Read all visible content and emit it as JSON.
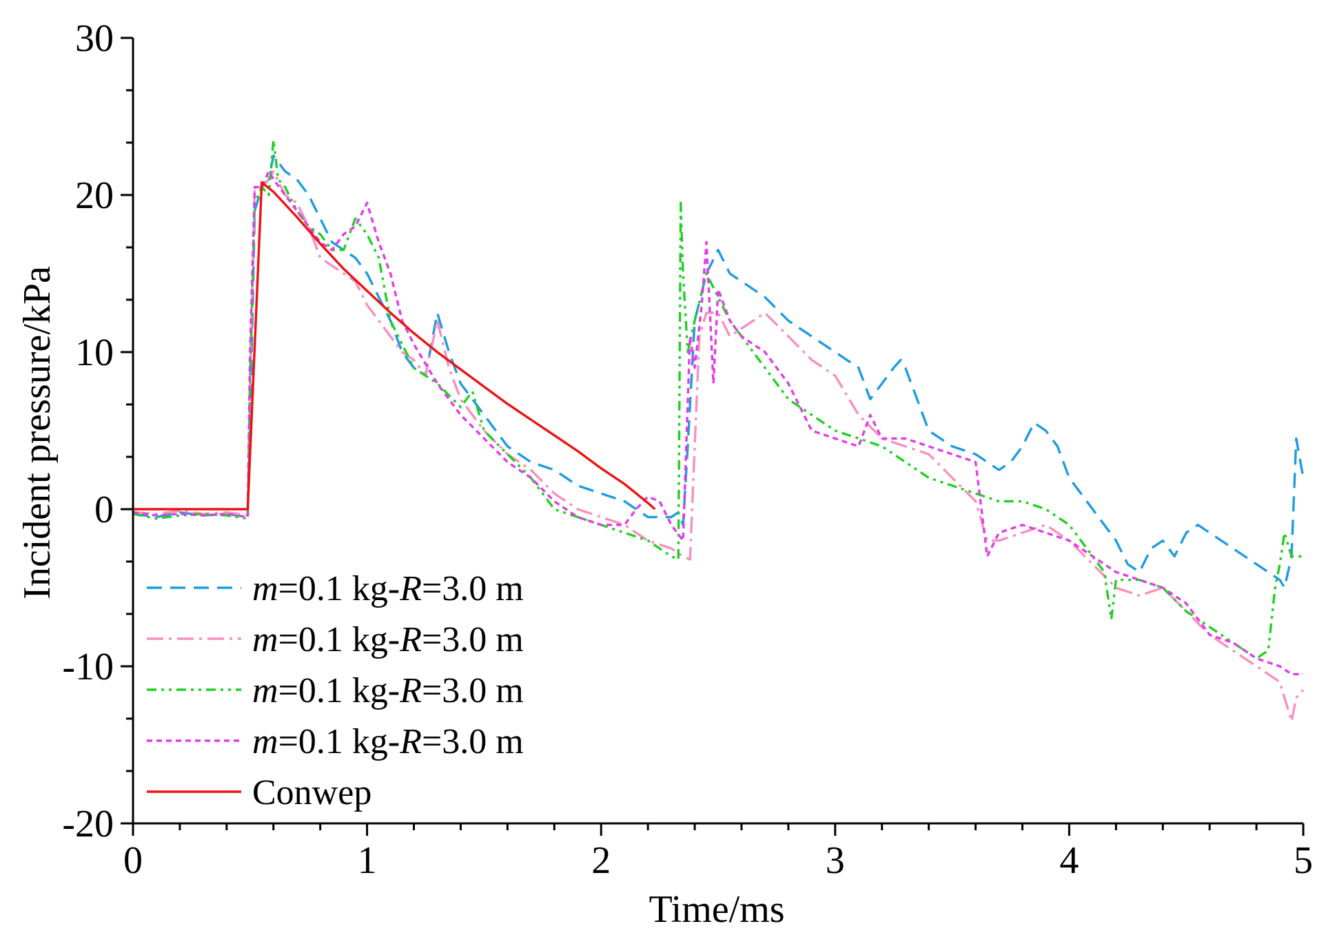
{
  "chart_data": {
    "type": "line",
    "title": "",
    "xlabel": "Time/ms",
    "ylabel": "Incident pressure/kPa",
    "xlim": [
      0,
      5
    ],
    "ylim": [
      -20,
      30
    ],
    "xticks": [
      0,
      1,
      2,
      3,
      4,
      5
    ],
    "yticks": [
      -20,
      -10,
      0,
      10,
      20,
      30
    ],
    "grid": false,
    "legend_position": "bottom-left",
    "series": [
      {
        "name": "m=0.1 kg-R=3.0 m",
        "label_parts": [
          "m",
          "=0.1 kg-",
          "R",
          "=3.0 m"
        ],
        "color": "#1E9BE0",
        "dash": "22 12",
        "x": [
          0,
          0.1,
          0.2,
          0.3,
          0.4,
          0.49,
          0.5,
          0.52,
          0.55,
          0.58,
          0.6,
          0.65,
          0.7,
          0.75,
          0.8,
          0.85,
          0.9,
          0.95,
          1.0,
          1.05,
          1.1,
          1.15,
          1.2,
          1.25,
          1.3,
          1.35,
          1.4,
          1.5,
          1.6,
          1.7,
          1.8,
          1.9,
          2.0,
          2.1,
          2.2,
          2.3,
          2.33,
          2.35,
          2.37,
          2.4,
          2.45,
          2.5,
          2.55,
          2.6,
          2.7,
          2.8,
          2.9,
          3.0,
          3.1,
          3.15,
          3.2,
          3.25,
          3.28,
          3.3,
          3.35,
          3.4,
          3.5,
          3.6,
          3.7,
          3.75,
          3.8,
          3.85,
          3.9,
          3.95,
          4.0,
          4.05,
          4.1,
          4.15,
          4.2,
          4.25,
          4.3,
          4.35,
          4.4,
          4.45,
          4.5,
          4.55,
          4.6,
          4.65,
          4.7,
          4.75,
          4.8,
          4.85,
          4.9,
          4.92,
          4.95,
          4.97,
          5.0
        ],
        "y": [
          -0.3,
          -0.5,
          -0.2,
          -0.4,
          -0.3,
          -0.5,
          5,
          19,
          20.5,
          21,
          22.5,
          21.5,
          21,
          20,
          18.5,
          17,
          16.5,
          16,
          15,
          13.5,
          12,
          10,
          9,
          8.5,
          12.5,
          10,
          8,
          6,
          4,
          3,
          2.5,
          1.5,
          1,
          0.5,
          -0.5,
          -0.5,
          -0.2,
          -1,
          4,
          12,
          15,
          16.5,
          15,
          14.5,
          13.5,
          12,
          11,
          10,
          9,
          7,
          8,
          9,
          9.5,
          9,
          7,
          5,
          4,
          3.5,
          2.5,
          3,
          4,
          5.5,
          5,
          4,
          2,
          1,
          0,
          -1,
          -2,
          -3.5,
          -4,
          -2.5,
          -2,
          -3,
          -1.5,
          -1,
          -1.5,
          -2,
          -2.5,
          -3,
          -3.5,
          -4,
          -4.5,
          -5,
          -3,
          4.5,
          2
        ]
      },
      {
        "name": "m=0.1 kg-R=3.0 m",
        "label_parts": [
          "m",
          "=0.1 kg-",
          "R",
          "=3.0 m"
        ],
        "color": "#F78FBF",
        "dash": "24 8 4 8",
        "x": [
          0,
          0.1,
          0.2,
          0.3,
          0.4,
          0.49,
          0.5,
          0.52,
          0.55,
          0.58,
          0.6,
          0.65,
          0.7,
          0.75,
          0.8,
          0.85,
          0.9,
          0.95,
          1.0,
          1.05,
          1.1,
          1.15,
          1.2,
          1.25,
          1.3,
          1.35,
          1.4,
          1.5,
          1.6,
          1.7,
          1.8,
          1.9,
          2.0,
          2.1,
          2.2,
          2.3,
          2.35,
          2.38,
          2.4,
          2.42,
          2.45,
          2.5,
          2.55,
          2.6,
          2.7,
          2.8,
          2.9,
          3.0,
          3.1,
          3.2,
          3.3,
          3.4,
          3.5,
          3.6,
          3.65,
          3.7,
          3.8,
          3.9,
          4.0,
          4.1,
          4.2,
          4.3,
          4.4,
          4.5,
          4.6,
          4.7,
          4.8,
          4.85,
          4.9,
          4.95,
          4.97,
          5.0
        ],
        "y": [
          -0.2,
          -0.3,
          -0.1,
          -0.3,
          -0.2,
          -0.4,
          8,
          20.5,
          20.5,
          21,
          21.5,
          20,
          19.5,
          18,
          16,
          15.5,
          15,
          14.5,
          13,
          12,
          11,
          10,
          9.5,
          8.5,
          12,
          9,
          7,
          5,
          3.5,
          2.5,
          1,
          0,
          -0.5,
          -1,
          -2,
          -2.5,
          -3,
          -3.2,
          4,
          11,
          12.5,
          12.5,
          11,
          11.5,
          12.5,
          11,
          9.5,
          8.5,
          6,
          4.5,
          4,
          3.5,
          2,
          0.5,
          -2,
          -2,
          -1.5,
          -1,
          -2,
          -3.5,
          -5,
          -5.5,
          -5,
          -6.5,
          -8,
          -9,
          -10,
          -10.5,
          -11,
          -13.5,
          -12,
          -11.5
        ]
      },
      {
        "name": "m=0.1 kg-R=3.0 m",
        "label_parts": [
          "m",
          "=0.1 kg-",
          "R",
          "=3.0 m"
        ],
        "color": "#1FD023",
        "dash": "14 7 4 7 4 7",
        "x": [
          0,
          0.1,
          0.2,
          0.3,
          0.4,
          0.49,
          0.5,
          0.52,
          0.55,
          0.58,
          0.6,
          0.62,
          0.65,
          0.7,
          0.75,
          0.8,
          0.85,
          0.9,
          0.95,
          1.0,
          1.05,
          1.1,
          1.15,
          1.2,
          1.3,
          1.4,
          1.45,
          1.5,
          1.6,
          1.7,
          1.8,
          1.9,
          2.0,
          2.1,
          2.2,
          2.3,
          2.33,
          2.34,
          2.35,
          2.37,
          2.4,
          2.45,
          2.5,
          2.55,
          2.6,
          2.7,
          2.8,
          2.9,
          3.0,
          3.1,
          3.2,
          3.3,
          3.4,
          3.5,
          3.6,
          3.7,
          3.8,
          3.9,
          4.0,
          4.1,
          4.15,
          4.18,
          4.2,
          4.3,
          4.4,
          4.5,
          4.6,
          4.7,
          4.8,
          4.85,
          4.88,
          4.9,
          4.92,
          4.95,
          5.0
        ],
        "y": [
          -0.3,
          -0.6,
          -0.4,
          -0.3,
          -0.4,
          -0.6,
          8,
          19.5,
          20.5,
          20,
          23.5,
          21,
          20.5,
          19,
          18,
          17.5,
          16.5,
          16.5,
          18.5,
          17.5,
          16,
          12,
          10.5,
          9,
          8,
          6.5,
          7.5,
          5,
          3.5,
          2,
          0,
          -0.5,
          -1,
          -1.5,
          -2,
          -3,
          -3.2,
          19.5,
          15,
          10,
          12,
          15,
          13.5,
          12,
          11,
          9,
          7,
          6,
          5,
          4.5,
          4,
          3,
          2,
          1.5,
          1,
          0.5,
          0.5,
          0,
          -1,
          -3,
          -4,
          -7,
          -4.5,
          -4.5,
          -5,
          -6.5,
          -7.5,
          -8.5,
          -9.5,
          -9,
          -5,
          -3.5,
          -1.5,
          -3,
          -3
        ]
      },
      {
        "name": "m=0.1 kg-R=3.0 m",
        "label_parts": [
          "m",
          "=0.1 kg-",
          "R",
          "=3.0 m"
        ],
        "color": "#E23CE6",
        "dash": "8 6",
        "x": [
          0,
          0.1,
          0.2,
          0.3,
          0.4,
          0.49,
          0.5,
          0.52,
          0.55,
          0.58,
          0.6,
          0.65,
          0.7,
          0.75,
          0.8,
          0.85,
          0.9,
          0.95,
          1.0,
          1.05,
          1.1,
          1.15,
          1.2,
          1.3,
          1.4,
          1.5,
          1.6,
          1.7,
          1.8,
          1.9,
          2.0,
          2.1,
          2.15,
          2.2,
          2.25,
          2.3,
          2.35,
          2.38,
          2.4,
          2.43,
          2.45,
          2.48,
          2.5,
          2.55,
          2.6,
          2.7,
          2.8,
          2.9,
          3.0,
          3.1,
          3.15,
          3.2,
          3.3,
          3.4,
          3.5,
          3.6,
          3.65,
          3.7,
          3.8,
          3.9,
          4.0,
          4.1,
          4.2,
          4.3,
          4.4,
          4.5,
          4.6,
          4.7,
          4.8,
          4.9,
          4.95,
          5.0
        ],
        "y": [
          -0.2,
          -0.4,
          -0.3,
          -0.4,
          -0.3,
          -0.5,
          10,
          20.5,
          20.5,
          21.5,
          21,
          20,
          19,
          18,
          17,
          16.5,
          17.5,
          18,
          19.5,
          17,
          15,
          12,
          10.5,
          8,
          6,
          4.5,
          3,
          2,
          0.5,
          -0.5,
          -1,
          -1,
          0,
          0.8,
          0.5,
          -1,
          -2,
          11,
          9,
          13,
          17,
          8,
          14,
          12,
          11,
          10,
          8,
          5,
          4.5,
          4,
          6,
          4.5,
          4.5,
          4,
          3.5,
          3,
          -3,
          -1.5,
          -1,
          -1.5,
          -2,
          -3,
          -4,
          -4.5,
          -5,
          -6,
          -8,
          -8.5,
          -9.5,
          -10,
          -10.5,
          -10.5
        ]
      },
      {
        "name": "Conwep",
        "label_parts": [
          "Conwep"
        ],
        "color": "#EE1111",
        "dash": "",
        "x": [
          0,
          0.4,
          0.49,
          0.55,
          0.6,
          0.7,
          0.8,
          0.9,
          1.0,
          1.1,
          1.2,
          1.3,
          1.4,
          1.5,
          1.6,
          1.7,
          1.8,
          1.9,
          2.0,
          2.1,
          2.2,
          2.23
        ],
        "y": [
          0,
          0,
          0,
          20.8,
          20.2,
          18.6,
          16.9,
          15.3,
          13.9,
          12.5,
          11.2,
          10.0,
          8.9,
          7.8,
          6.7,
          5.7,
          4.7,
          3.7,
          2.6,
          1.6,
          0.4,
          0
        ]
      }
    ]
  }
}
